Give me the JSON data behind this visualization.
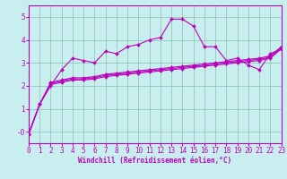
{
  "xlabel": "Windchill (Refroidissement éolien,°C)",
  "bg_color": "#c8eef0",
  "grid_color": "#90c8b8",
  "line_color": "#bb00bb",
  "axis_color": "#bb00bb",
  "xmin": 0,
  "xmax": 23,
  "ymin": -0.5,
  "ymax": 5.5,
  "yticks": [
    0,
    1,
    2,
    3,
    4,
    5
  ],
  "ytick_labels": [
    "-0",
    "1",
    "2",
    "3",
    "4",
    "5"
  ],
  "xticks": [
    0,
    1,
    2,
    3,
    4,
    5,
    6,
    7,
    8,
    9,
    10,
    11,
    12,
    13,
    14,
    15,
    16,
    17,
    18,
    19,
    20,
    21,
    22,
    23
  ],
  "series": [
    {
      "x": [
        0,
        1,
        2,
        3,
        4,
        5,
        6,
        7,
        8,
        9,
        10,
        11,
        12,
        13,
        14,
        15,
        16,
        17,
        18,
        19,
        20,
        21,
        22,
        23
      ],
      "y": [
        -0.1,
        1.2,
        2.0,
        2.7,
        3.2,
        3.1,
        3.0,
        3.5,
        3.4,
        3.7,
        3.8,
        4.0,
        4.1,
        4.9,
        4.9,
        4.6,
        3.7,
        3.7,
        3.1,
        3.2,
        2.9,
        2.7,
        3.4,
        3.6
      ]
    },
    {
      "x": [
        0,
        1,
        2,
        3,
        4,
        5,
        6,
        7,
        8,
        9,
        10,
        11,
        12,
        13,
        14,
        15,
        16,
        17,
        18,
        19,
        20,
        21,
        22,
        23
      ],
      "y": [
        -0.1,
        1.2,
        2.05,
        2.15,
        2.25,
        2.25,
        2.3,
        2.4,
        2.45,
        2.5,
        2.55,
        2.6,
        2.65,
        2.7,
        2.75,
        2.8,
        2.85,
        2.9,
        2.95,
        3.0,
        3.05,
        3.1,
        3.2,
        3.6
      ]
    },
    {
      "x": [
        0,
        1,
        2,
        3,
        4,
        5,
        6,
        7,
        8,
        9,
        10,
        11,
        12,
        13,
        14,
        15,
        16,
        17,
        18,
        19,
        20,
        21,
        22,
        23
      ],
      "y": [
        -0.1,
        1.2,
        2.1,
        2.2,
        2.3,
        2.3,
        2.35,
        2.45,
        2.5,
        2.55,
        2.6,
        2.65,
        2.7,
        2.75,
        2.8,
        2.85,
        2.9,
        2.95,
        3.0,
        3.05,
        3.1,
        3.15,
        3.25,
        3.65
      ]
    },
    {
      "x": [
        0,
        1,
        2,
        3,
        4,
        5,
        6,
        7,
        8,
        9,
        10,
        11,
        12,
        13,
        14,
        15,
        16,
        17,
        18,
        19,
        20,
        21,
        22,
        23
      ],
      "y": [
        -0.1,
        1.2,
        2.15,
        2.25,
        2.35,
        2.35,
        2.4,
        2.5,
        2.55,
        2.6,
        2.65,
        2.7,
        2.75,
        2.8,
        2.85,
        2.9,
        2.95,
        3.0,
        3.05,
        3.1,
        3.15,
        3.2,
        3.3,
        3.7
      ]
    }
  ],
  "marker": "D",
  "markersize": 2.0,
  "linewidth": 0.8,
  "xlabel_fontsize": 5.5,
  "tick_fontsize": 5.5
}
